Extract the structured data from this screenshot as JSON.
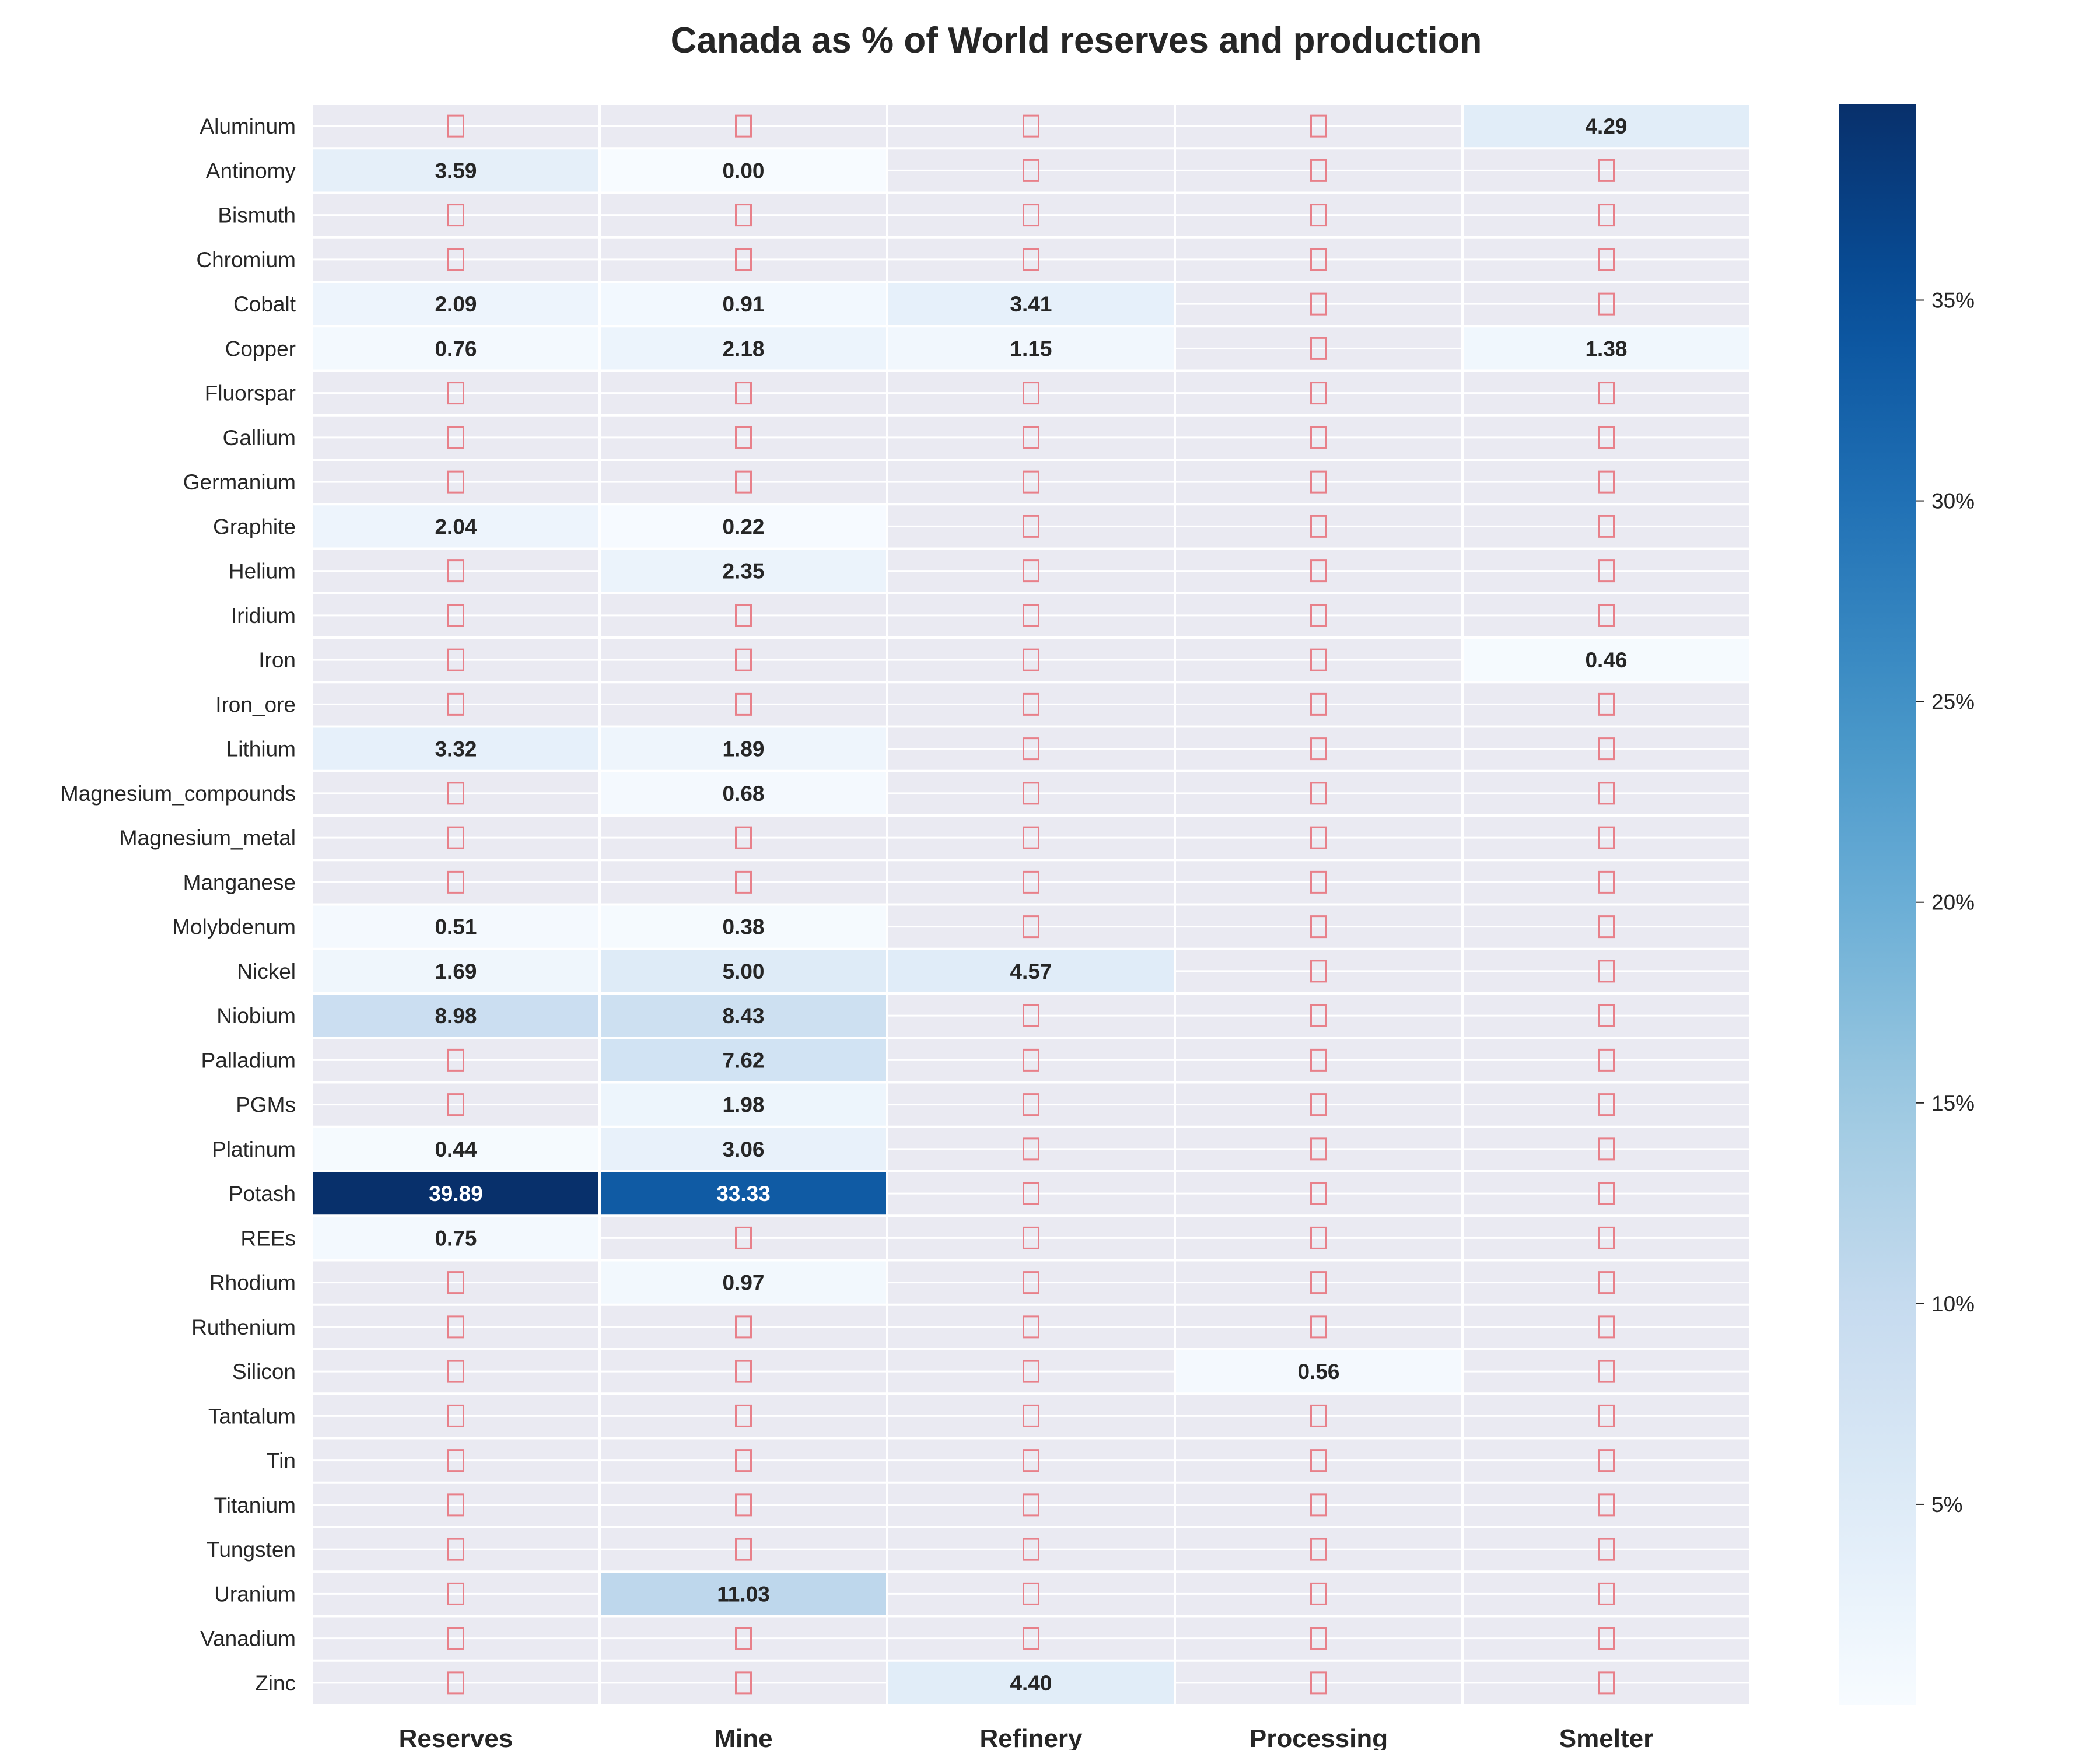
{
  "chart_data": {
    "type": "heatmap",
    "title": "Canada as % of World reserves and production",
    "columns": [
      "Reserves",
      "Mine",
      "Refinery",
      "Processing",
      "Smelter"
    ],
    "rows": [
      "Aluminum",
      "Antinomy",
      "Bismuth",
      "Chromium",
      "Cobalt",
      "Copper",
      "Fluorspar",
      "Gallium",
      "Germanium",
      "Graphite",
      "Helium",
      "Iridium",
      "Iron",
      "Iron_ore",
      "Lithium",
      "Magnesium_compounds",
      "Magnesium_metal",
      "Manganese",
      "Molybdenum",
      "Nickel",
      "Niobium",
      "Palladium",
      "PGMs",
      "Platinum",
      "Potash",
      "REEs",
      "Rhodium",
      "Ruthenium",
      "Silicon",
      "Tantalum",
      "Tin",
      "Titanium",
      "Tungsten",
      "Uranium",
      "Vanadium",
      "Zinc"
    ],
    "values": [
      [
        null,
        null,
        null,
        null,
        4.29
      ],
      [
        3.59,
        0.0,
        null,
        null,
        null
      ],
      [
        null,
        null,
        null,
        null,
        null
      ],
      [
        null,
        null,
        null,
        null,
        null
      ],
      [
        2.09,
        0.91,
        3.41,
        null,
        null
      ],
      [
        0.76,
        2.18,
        1.15,
        null,
        1.38
      ],
      [
        null,
        null,
        null,
        null,
        null
      ],
      [
        null,
        null,
        null,
        null,
        null
      ],
      [
        null,
        null,
        null,
        null,
        null
      ],
      [
        2.04,
        0.22,
        null,
        null,
        null
      ],
      [
        null,
        2.35,
        null,
        null,
        null
      ],
      [
        null,
        null,
        null,
        null,
        null
      ],
      [
        null,
        null,
        null,
        null,
        0.46
      ],
      [
        null,
        null,
        null,
        null,
        null
      ],
      [
        3.32,
        1.89,
        null,
        null,
        null
      ],
      [
        null,
        0.68,
        null,
        null,
        null
      ],
      [
        null,
        null,
        null,
        null,
        null
      ],
      [
        null,
        null,
        null,
        null,
        null
      ],
      [
        0.51,
        0.38,
        null,
        null,
        null
      ],
      [
        1.69,
        5.0,
        4.57,
        null,
        null
      ],
      [
        8.98,
        8.43,
        null,
        null,
        null
      ],
      [
        null,
        7.62,
        null,
        null,
        null
      ],
      [
        null,
        1.98,
        null,
        null,
        null
      ],
      [
        0.44,
        3.06,
        null,
        null,
        null
      ],
      [
        39.89,
        33.33,
        null,
        null,
        null
      ],
      [
        0.75,
        null,
        null,
        null,
        null
      ],
      [
        null,
        0.97,
        null,
        null,
        null
      ],
      [
        null,
        null,
        null,
        null,
        null
      ],
      [
        null,
        null,
        null,
        0.56,
        null
      ],
      [
        null,
        null,
        null,
        null,
        null
      ],
      [
        null,
        null,
        null,
        null,
        null
      ],
      [
        null,
        null,
        null,
        null,
        null
      ],
      [
        null,
        null,
        null,
        null,
        null
      ],
      [
        null,
        11.03,
        null,
        null,
        null
      ],
      [
        null,
        null,
        null,
        null,
        null
      ],
      [
        null,
        null,
        4.4,
        null,
        null
      ]
    ],
    "value_format": "2 decimals",
    "colormap": "Blues",
    "color_range": [
      0.0,
      39.89
    ],
    "missing_cell_color": "#eaeaf2",
    "missing_cell_marker": "□",
    "colorbar": {
      "ticks": [
        5,
        10,
        15,
        20,
        25,
        30,
        35
      ],
      "tick_labels": [
        "5%",
        "10%",
        "15%",
        "20%",
        "25%",
        "30%",
        "35%"
      ],
      "placement": "right"
    },
    "grid": true
  }
}
